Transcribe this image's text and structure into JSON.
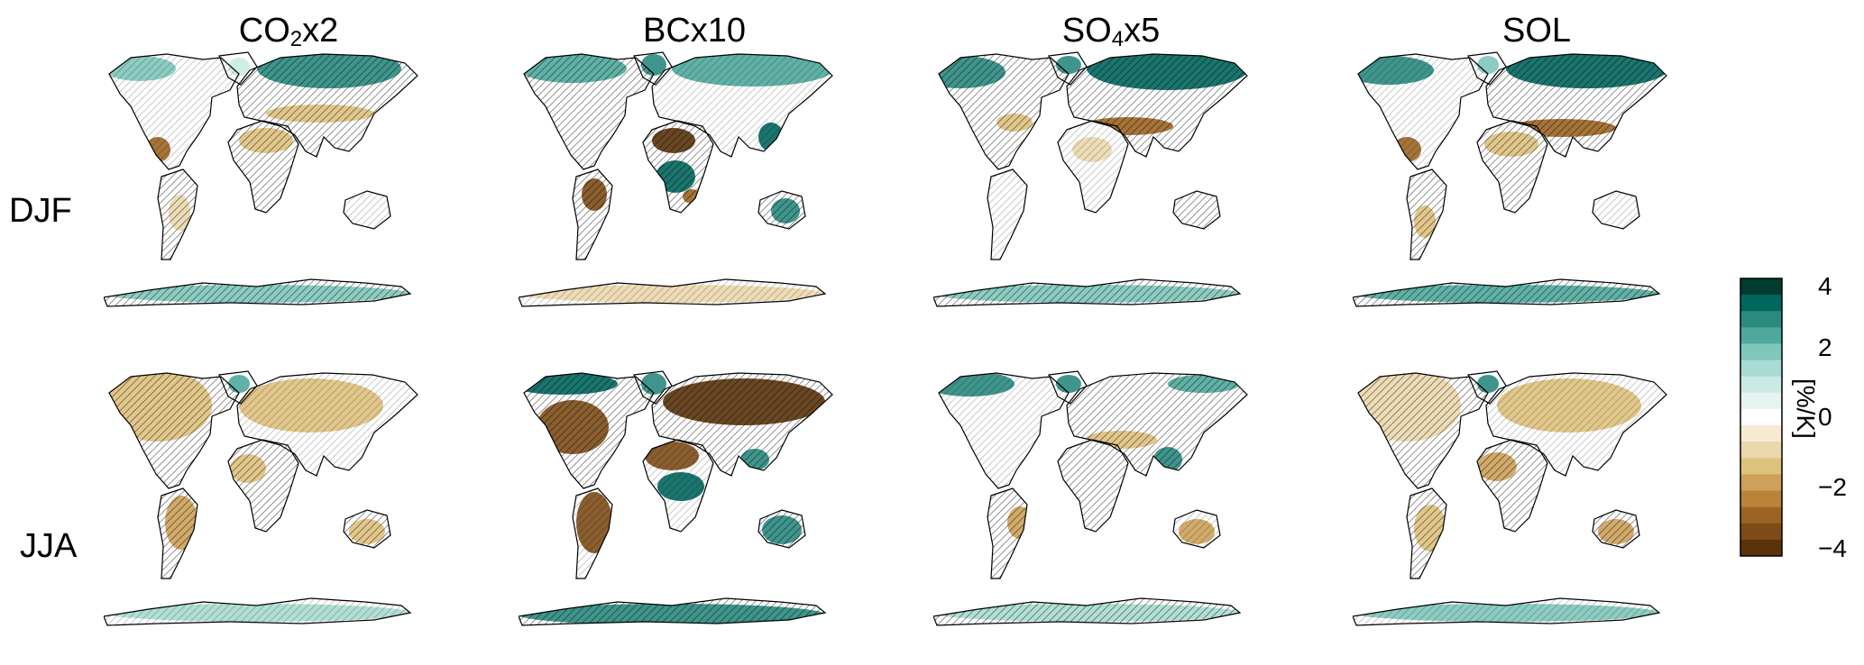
{
  "figure": {
    "columns": [
      {
        "pre": "CO",
        "sub": "2",
        "post": "x2"
      },
      {
        "pre": "BCx10",
        "sub": "",
        "post": ""
      },
      {
        "pre": "SO",
        "sub": "4",
        "post": "x5"
      },
      {
        "pre": "SOL",
        "sub": "",
        "post": ""
      }
    ],
    "rows": [
      "DJF",
      "JJA"
    ]
  },
  "colorbar": {
    "ticks": [
      "4",
      "2",
      "0",
      "−2",
      "−4"
    ],
    "unit": "[%/K]",
    "range": [
      -4,
      4
    ],
    "colors_top_to_bottom": [
      "#003c30",
      "#01665e",
      "#2a8a80",
      "#4fa89c",
      "#7fc7bb",
      "#a8dcd2",
      "#cbeae3",
      "#e6f4f0",
      "#ffffff",
      "#f6ead1",
      "#ecd8ae",
      "#dfc17e",
      "#cda159",
      "#b9843a",
      "#9c6424",
      "#7d4c17",
      "#5a330b"
    ]
  },
  "colors": {
    "wet": "#5fb5a6",
    "strong_wet": "#01665e",
    "dry": "#d3ae72",
    "strong_dry": "#8c5212",
    "coast": "#000000"
  },
  "chart_data": {
    "type": "heatmap",
    "panels": [
      {
        "column": "CO2x2",
        "row": "DJF"
      },
      {
        "column": "BCx10",
        "row": "DJF"
      },
      {
        "column": "SO4x5",
        "row": "DJF"
      },
      {
        "column": "SOL",
        "row": "DJF"
      },
      {
        "column": "CO2x2",
        "row": "JJA"
      },
      {
        "column": "BCx10",
        "row": "JJA"
      },
      {
        "column": "SO4x5",
        "row": "JJA"
      },
      {
        "column": "SOL",
        "row": "JJA"
      }
    ],
    "color_scale": {
      "min": -4,
      "max": 4,
      "unit": "[%/K]"
    }
  }
}
